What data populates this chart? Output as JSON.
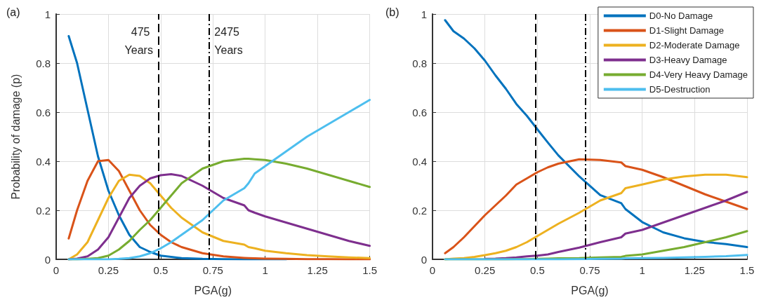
{
  "chart_data": [
    {
      "type": "line",
      "title": "(a)",
      "xlabel": "PGA(g)",
      "ylabel": "Probability of damage (p)",
      "xlim": [
        0,
        1.5
      ],
      "xticks": [
        0,
        0.25,
        0.5,
        0.75,
        1,
        1.25,
        1.5
      ],
      "ylim": [
        0,
        1
      ],
      "yticks": [
        0,
        0.2,
        0.4,
        0.6,
        0.8,
        1
      ],
      "grid": true,
      "legend": false,
      "marker": "none",
      "line_style": "solid",
      "x": [
        0.06,
        0.1,
        0.15,
        0.2,
        0.25,
        0.3,
        0.35,
        0.4,
        0.45,
        0.5,
        0.55,
        0.6,
        0.7,
        0.8,
        0.9,
        0.92,
        0.95,
        1.0,
        1.1,
        1.2,
        1.3,
        1.4,
        1.5
      ],
      "series": [
        {
          "color": "#0072bd",
          "values": [
            0.91,
            0.8,
            0.61,
            0.42,
            0.28,
            0.18,
            0.1,
            0.05,
            0.03,
            0.015,
            0.01,
            0.005,
            0.002,
            0.001,
            0,
            0,
            0,
            0,
            0,
            null,
            null,
            null,
            null
          ]
        },
        {
          "color": "#d95319",
          "values": [
            0.085,
            0.2,
            0.32,
            0.4,
            0.405,
            0.36,
            0.28,
            0.2,
            0.14,
            0.1,
            0.07,
            0.05,
            0.025,
            0.012,
            0.006,
            0.005,
            0.004,
            0.003,
            0.002,
            0.001,
            0.001,
            0,
            0
          ]
        },
        {
          "color": "#edb120",
          "values": [
            0,
            0.02,
            0.07,
            0.16,
            0.25,
            0.32,
            0.345,
            0.34,
            0.31,
            0.26,
            0.21,
            0.17,
            0.11,
            0.075,
            0.06,
            0.05,
            0.045,
            0.035,
            0.025,
            0.017,
            0.012,
            0.008,
            0.005
          ]
        },
        {
          "color": "#7e2f8e",
          "values": [
            0,
            0.003,
            0.012,
            0.04,
            0.09,
            0.17,
            0.25,
            0.3,
            0.33,
            0.343,
            0.347,
            0.34,
            0.3,
            0.25,
            0.22,
            0.2,
            0.19,
            0.175,
            0.15,
            0.125,
            0.1,
            0.075,
            0.055
          ]
        },
        {
          "color": "#77ac30",
          "values": [
            0,
            0,
            0.002,
            0.005,
            0.015,
            0.04,
            0.075,
            0.12,
            0.16,
            0.21,
            0.26,
            0.31,
            0.37,
            0.4,
            0.41,
            0.41,
            0.408,
            0.405,
            0.39,
            0.37,
            0.345,
            0.32,
            0.295
          ]
        },
        {
          "color": "#4dbeee",
          "values": [
            0,
            0,
            0,
            0,
            0,
            0.002,
            0.005,
            0.012,
            0.025,
            0.045,
            0.07,
            0.1,
            0.16,
            0.24,
            0.29,
            0.31,
            0.35,
            0.38,
            0.44,
            0.5,
            0.55,
            0.6,
            0.65
          ]
        }
      ],
      "ref_lines": [
        {
          "axis": "x",
          "value": 0.49,
          "label": "475 Years",
          "color": "#000000",
          "line_style": "dashed"
        },
        {
          "axis": "x",
          "value": 0.73,
          "label": "2475 Years",
          "color": "#000000",
          "line_style": "dashdot"
        }
      ]
    },
    {
      "type": "line",
      "title": "(b)",
      "xlabel": "PGA(g)",
      "xlim": [
        0,
        1.5
      ],
      "xticks": [
        0,
        0.25,
        0.5,
        0.75,
        1,
        1.25,
        1.5
      ],
      "ylim": [
        0,
        1
      ],
      "yticks": [
        0,
        0.2,
        0.4,
        0.6,
        0.8,
        1
      ],
      "grid": true,
      "legend": "top right",
      "marker": "none",
      "line_style": "solid",
      "x": [
        0.06,
        0.1,
        0.15,
        0.2,
        0.25,
        0.3,
        0.35,
        0.4,
        0.45,
        0.5,
        0.55,
        0.6,
        0.7,
        0.8,
        0.9,
        0.92,
        1.0,
        1.1,
        1.2,
        1.3,
        1.4,
        1.5
      ],
      "series": [
        {
          "name": "D0-No Damage",
          "color": "#0072bd",
          "values": [
            0.975,
            0.93,
            0.9,
            0.86,
            0.81,
            0.75,
            0.695,
            0.633,
            0.585,
            0.53,
            0.476,
            0.424,
            0.338,
            0.262,
            0.229,
            0.205,
            0.152,
            0.11,
            0.086,
            0.071,
            0.062,
            0.05
          ]
        },
        {
          "name": "D1-Slight Damage",
          "color": "#d95319",
          "values": [
            0.025,
            0.05,
            0.09,
            0.135,
            0.18,
            0.22,
            0.26,
            0.305,
            0.33,
            0.355,
            0.375,
            0.39,
            0.408,
            0.405,
            0.395,
            0.38,
            0.365,
            0.335,
            0.3,
            0.265,
            0.235,
            0.205
          ]
        },
        {
          "name": "D2-Moderate Damage",
          "color": "#edb120",
          "values": [
            0,
            0.003,
            0.005,
            0.01,
            0.017,
            0.025,
            0.035,
            0.05,
            0.07,
            0.095,
            0.12,
            0.145,
            0.19,
            0.24,
            0.27,
            0.29,
            0.305,
            0.325,
            0.338,
            0.345,
            0.345,
            0.335
          ]
        },
        {
          "name": "D3-Heavy Damage",
          "color": "#7e2f8e",
          "values": [
            null,
            null,
            null,
            null,
            0.002,
            0.003,
            0.005,
            0.008,
            0.012,
            0.015,
            0.02,
            0.03,
            0.048,
            0.07,
            0.09,
            0.105,
            0.12,
            0.15,
            0.18,
            0.21,
            0.24,
            0.275
          ]
        },
        {
          "name": "D4-Very Heavy Damage",
          "color": "#77ac30",
          "values": [
            0,
            0,
            0,
            0,
            0,
            0,
            0,
            0.001,
            0.001,
            0.002,
            0.003,
            0.004,
            0.005,
            0.008,
            0.01,
            0.014,
            0.02,
            0.035,
            0.05,
            0.07,
            0.09,
            0.115
          ]
        },
        {
          "name": "D5-Destruction",
          "color": "#4dbeee",
          "values": [
            0,
            0,
            0,
            0,
            0,
            0,
            0,
            0,
            0,
            0,
            0,
            0,
            0.001,
            0.002,
            0.003,
            0.004,
            0.005,
            0.006,
            0.008,
            0.01,
            0.013,
            0.018
          ]
        }
      ],
      "ref_lines": [
        {
          "axis": "x",
          "value": 0.49,
          "color": "#000000",
          "line_style": "dashed"
        },
        {
          "axis": "x",
          "value": 0.73,
          "color": "#000000",
          "line_style": "dashdot"
        }
      ]
    }
  ]
}
